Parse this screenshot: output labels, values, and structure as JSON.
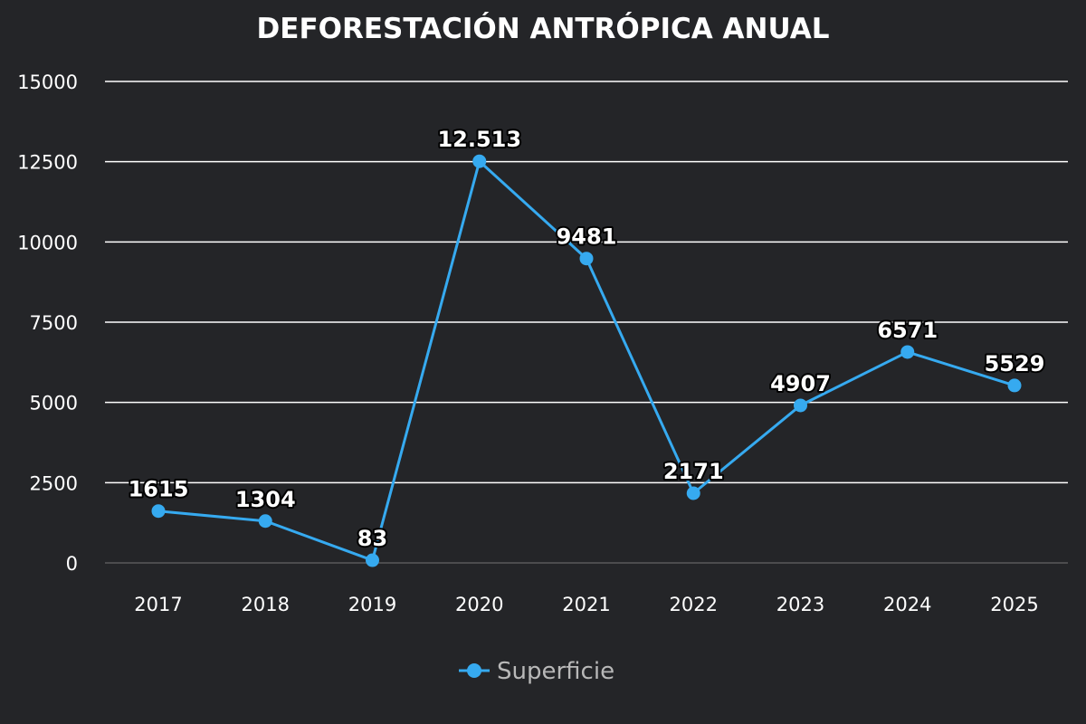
{
  "chart_data": {
    "type": "line",
    "title": "DEFORESTACIÓN ANTRÓPICA ANUAL",
    "xlabel": "",
    "ylabel": "",
    "categories": [
      "2017",
      "2018",
      "2019",
      "2020",
      "2021",
      "2022",
      "2023",
      "2024",
      "2025"
    ],
    "series": [
      {
        "name": "Superficie",
        "values": [
          1615,
          1304,
          83,
          12513,
          9481,
          2171,
          4907,
          6571,
          5529
        ],
        "labels": [
          "1615",
          "1304",
          "83",
          "12.513",
          "9481",
          "2171",
          "4907",
          "6571",
          "5529"
        ],
        "color": "#36aaf0"
      }
    ],
    "ylim": [
      0,
      15000
    ],
    "yticks": [
      0,
      2500,
      5000,
      7500,
      10000,
      12500,
      15000
    ],
    "ytick_labels": [
      "0",
      "2500",
      "5000",
      "7500",
      "10000",
      "12500",
      "15000"
    ],
    "grid": true,
    "legend": "bottom-center"
  },
  "colors": {
    "background": "#242528",
    "line": "#36aaf0",
    "grid": "#ffffff",
    "text": "#ffffff",
    "legend_text": "#b8b8b8"
  }
}
